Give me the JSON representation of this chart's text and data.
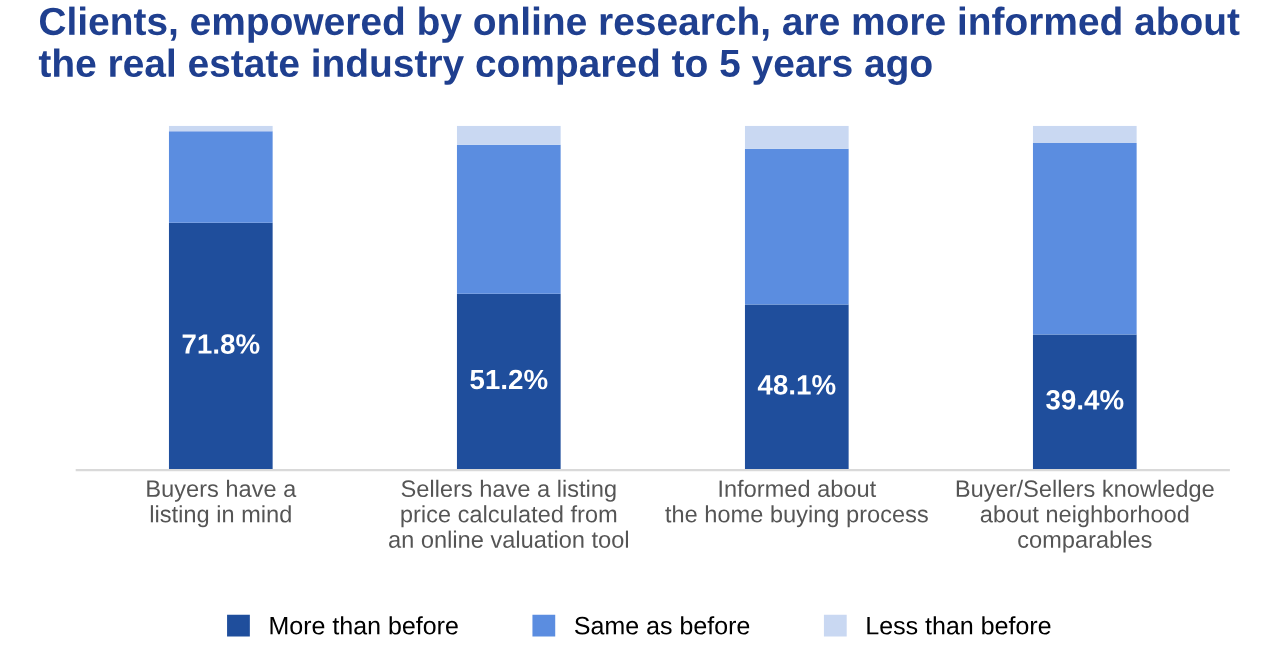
{
  "chart_data": {
    "type": "bar",
    "stacked": true,
    "title": "Clients, empowered by online research, are more informed about\nthe real estate industry compared to 5 years ago",
    "categories": [
      "Buyers have a\nlisting in mind",
      "Sellers have a listing\nprice calculated from\nan online valuation tool",
      "Informed about\nthe home buying process",
      "Buyer/Sellers knowledge\nabout neighborhood\ncomparables"
    ],
    "ylim": [
      0,
      100
    ],
    "series": [
      {
        "name": "More than before",
        "color": "#1f4e9c",
        "values": [
          71.8,
          51.2,
          48.1,
          39.4
        ],
        "value_labels": [
          "71.8%",
          "51.2%",
          "48.1%",
          "39.4%"
        ]
      },
      {
        "name": "Same as before",
        "color": "#5b8de0",
        "values": [
          26.6,
          43.3,
          45.2,
          55.6
        ]
      },
      {
        "name": "Less than before",
        "color": "#c9d8f2",
        "values": [
          1.6,
          5.5,
          6.7,
          5.0
        ]
      }
    ],
    "legend": "bottom",
    "grid": false,
    "tick_labels": "x"
  }
}
